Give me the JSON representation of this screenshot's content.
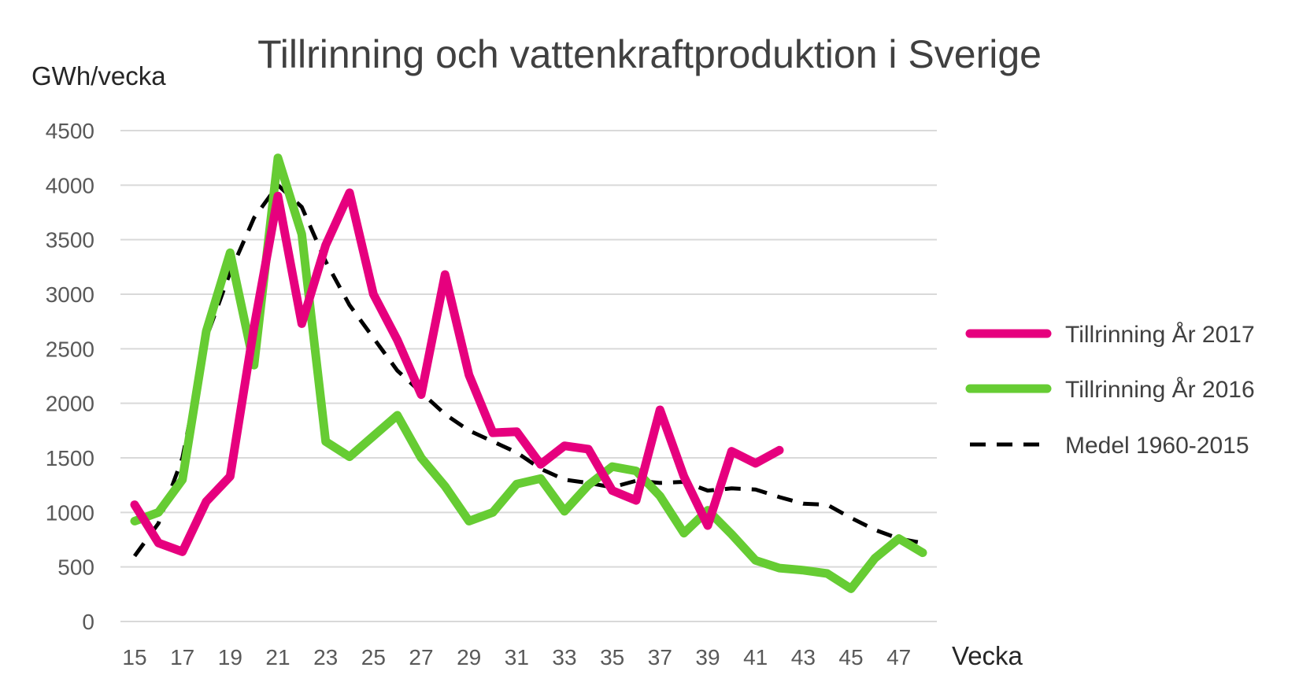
{
  "chart_data": {
    "type": "line",
    "title": "Tillrinning och vattenkraftproduktion i Sverige",
    "ylabel": "GWh/vecka",
    "xlabel": "Vecka",
    "ylim": [
      0,
      4500
    ],
    "xlim": [
      15,
      48
    ],
    "y_ticks": [
      "0",
      "500",
      "1000",
      "1500",
      "2000",
      "2500",
      "3000",
      "3500",
      "4000",
      "4500"
    ],
    "x_ticks": [
      "15",
      "17",
      "19",
      "21",
      "23",
      "25",
      "27",
      "29",
      "31",
      "33",
      "35",
      "37",
      "39",
      "41",
      "43",
      "45",
      "47"
    ],
    "grid": true,
    "legend_position": "right",
    "series": [
      {
        "name": "Tillrinning År 2017",
        "color": "#e6007e",
        "style": "solid",
        "x": [
          15,
          16,
          17,
          18,
          19,
          20,
          21,
          22,
          23,
          24,
          25,
          26,
          27,
          28,
          29,
          30,
          31,
          32,
          33,
          34,
          35,
          36,
          37,
          38,
          39,
          40,
          41,
          42
        ],
        "values": [
          1070,
          720,
          640,
          1100,
          1330,
          2700,
          3900,
          2730,
          3450,
          3930,
          3000,
          2580,
          2080,
          3180,
          2260,
          1730,
          1740,
          1440,
          1610,
          1580,
          1200,
          1110,
          1940,
          1330,
          880,
          1560,
          1450,
          1570
        ]
      },
      {
        "name": "Tillrinning År 2016",
        "color": "#66cc33",
        "style": "solid",
        "x": [
          15,
          16,
          17,
          18,
          19,
          20,
          21,
          22,
          23,
          24,
          25,
          26,
          27,
          28,
          29,
          30,
          31,
          32,
          33,
          34,
          35,
          36,
          37,
          38,
          39,
          40,
          41,
          42,
          43,
          44,
          45,
          46,
          47,
          48
        ],
        "values": [
          920,
          1000,
          1300,
          2660,
          3380,
          2350,
          4250,
          3550,
          1650,
          1510,
          1700,
          1890,
          1500,
          1240,
          920,
          1000,
          1260,
          1310,
          1010,
          1250,
          1420,
          1380,
          1150,
          810,
          1020,
          800,
          560,
          490,
          470,
          440,
          300,
          580,
          760,
          630
        ]
      },
      {
        "name": "Medel 1960-2015",
        "color": "#000000",
        "style": "dashed",
        "x": [
          15,
          16,
          17,
          18,
          19,
          20,
          21,
          22,
          23,
          24,
          25,
          26,
          27,
          28,
          29,
          30,
          31,
          32,
          33,
          34,
          35,
          36,
          37,
          38,
          39,
          40,
          41,
          42,
          43,
          44,
          45,
          46,
          47,
          48
        ],
        "values": [
          600,
          900,
          1500,
          2600,
          3200,
          3700,
          4000,
          3800,
          3300,
          2900,
          2600,
          2300,
          2100,
          1900,
          1750,
          1650,
          1550,
          1400,
          1300,
          1270,
          1230,
          1290,
          1270,
          1280,
          1200,
          1220,
          1210,
          1140,
          1080,
          1070,
          950,
          840,
          760,
          720
        ]
      }
    ]
  }
}
